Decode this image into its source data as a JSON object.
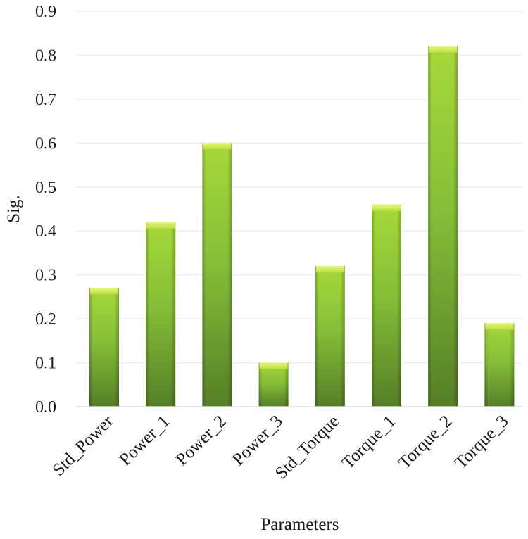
{
  "chart_data": {
    "type": "bar",
    "title": "",
    "xlabel": "Parameters",
    "ylabel": "Sig.",
    "categories": [
      "Std_Power",
      "Power_1",
      "Power_2",
      "Power_3",
      "Std_Torque",
      "Torque_1",
      "Torque_2",
      "Torque_3"
    ],
    "values": [
      0.27,
      0.42,
      0.6,
      0.1,
      0.32,
      0.46,
      0.82,
      0.19
    ],
    "ylim": [
      0,
      0.9
    ],
    "yticks": [
      "0.0",
      "0.1",
      "0.2",
      "0.3",
      "0.4",
      "0.5",
      "0.6",
      "0.7",
      "0.8",
      "0.9"
    ],
    "grid": true,
    "legend": "none",
    "colors": {
      "bar_top": "#b5e63a",
      "bar_mid": "#8cc63f",
      "bar_bottom": "#5a8a2a",
      "bar_cap": "#d7f06a",
      "grid": "#eeeeee"
    }
  }
}
